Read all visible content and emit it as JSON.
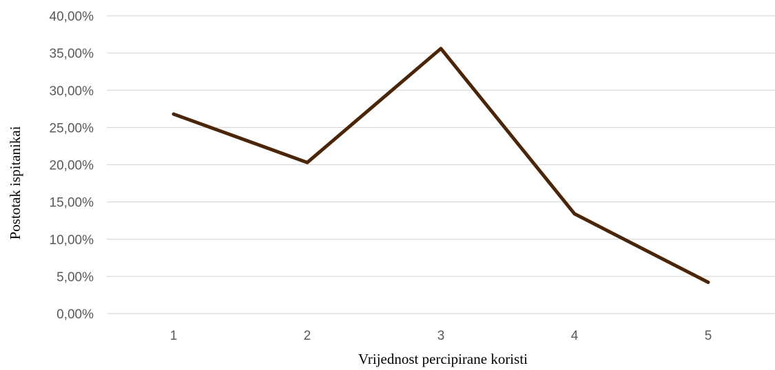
{
  "chart_data": {
    "type": "line",
    "title": "",
    "xlabel": "Vrijednost percipirane koristi",
    "ylabel": "Postotak ispitanikai",
    "categories": [
      "1",
      "2",
      "3",
      "4",
      "5"
    ],
    "series": [
      {
        "values": [
          26.8,
          20.3,
          35.6,
          13.4,
          4.2
        ],
        "color": "#4a2508"
      }
    ],
    "ylim": [
      0,
      40
    ],
    "yticks": [
      "0,00%",
      "5,00%",
      "10,00%",
      "15,00%",
      "20,00%",
      "25,00%",
      "30,00%",
      "35,00%",
      "40,00%"
    ],
    "grid": true,
    "legend": "none"
  }
}
